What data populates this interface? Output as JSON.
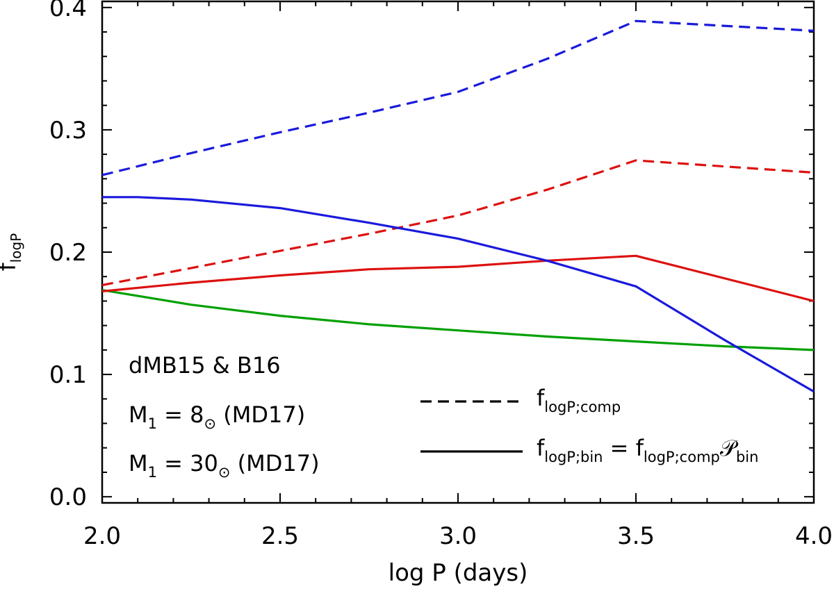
{
  "chart_data": {
    "type": "line",
    "title": "",
    "xlabel": "log P (days)",
    "ylabel": {
      "main": "f",
      "sub": "logP"
    },
    "xlim": [
      2.0,
      4.0
    ],
    "ylim": [
      -0.005,
      0.405
    ],
    "x_ticks": [
      2.0,
      2.5,
      3.0,
      3.5,
      4.0
    ],
    "x_tick_labels": [
      "2.0",
      "2.5",
      "3.0",
      "3.5",
      "4.0"
    ],
    "y_ticks": [
      0.0,
      0.1,
      0.2,
      0.3,
      0.4
    ],
    "y_tick_labels": [
      "0.0",
      "0.1",
      "0.2",
      "0.3",
      "0.4"
    ],
    "x_minor_step": 0.1,
    "y_minor_step": 0.02,
    "grid": false,
    "series": [
      {
        "name": "dMB15 & B16",
        "color": "#00a000",
        "style": "solid",
        "x": [
          2.0,
          2.25,
          2.5,
          2.75,
          3.0,
          3.25,
          3.5,
          3.75,
          4.0
        ],
        "y": [
          0.169,
          0.157,
          0.148,
          0.141,
          0.136,
          0.131,
          0.127,
          0.123,
          0.12
        ]
      },
      {
        "name": "M1 = 8 comp",
        "color": "#dd1111",
        "style": "dashed",
        "x": [
          2.0,
          2.25,
          2.5,
          2.75,
          3.0,
          3.25,
          3.5,
          4.0
        ],
        "y": [
          0.173,
          0.187,
          0.201,
          0.215,
          0.23,
          0.251,
          0.275,
          0.265
        ]
      },
      {
        "name": "M1 = 8 bin",
        "color": "#dd1111",
        "style": "solid",
        "x": [
          2.0,
          2.25,
          2.5,
          2.75,
          3.0,
          3.25,
          3.5,
          4.0
        ],
        "y": [
          0.168,
          0.175,
          0.181,
          0.186,
          0.188,
          0.193,
          0.197,
          0.16
        ]
      },
      {
        "name": "M1 = 30 comp",
        "color": "#1a1adc",
        "style": "dashed",
        "x": [
          2.0,
          2.25,
          2.5,
          2.75,
          3.0,
          3.25,
          3.5,
          4.0
        ],
        "y": [
          0.263,
          0.281,
          0.298,
          0.314,
          0.331,
          0.358,
          0.389,
          0.381
        ]
      },
      {
        "name": "M1 = 30 bin",
        "color": "#1a1adc",
        "style": "solid",
        "x": [
          2.0,
          2.1,
          2.25,
          2.5,
          2.75,
          3.0,
          3.25,
          3.5,
          3.75,
          4.0
        ],
        "y": [
          0.245,
          0.245,
          0.243,
          0.236,
          0.224,
          0.211,
          0.193,
          0.172,
          0.128,
          0.086
        ]
      }
    ],
    "color_legend": [
      {
        "parts": [
          {
            "t": "dMB15 & B16"
          }
        ],
        "color": "#00a000"
      },
      {
        "parts": [
          {
            "t": "M"
          },
          {
            "t": "1",
            "sub": true
          },
          {
            "t": " =   8"
          },
          {
            "t": "⊙",
            "sub": true
          },
          {
            "t": " (MD17)"
          }
        ],
        "color": "#dd1111"
      },
      {
        "parts": [
          {
            "t": "M"
          },
          {
            "t": "1",
            "sub": true
          },
          {
            "t": " = 30"
          },
          {
            "t": "⊙",
            "sub": true
          },
          {
            "t": " (MD17)"
          }
        ],
        "color": "#1a1adc"
      }
    ],
    "line_legend": [
      {
        "style": "dashed",
        "parts": [
          {
            "t": "f"
          },
          {
            "t": "logP;comp",
            "sub": true
          }
        ]
      },
      {
        "style": "solid",
        "parts": [
          {
            "t": "f"
          },
          {
            "t": "logP;bin",
            "sub": true
          },
          {
            "t": " = f"
          },
          {
            "t": "logP;comp",
            "sub": true
          },
          {
            "t": "𝒫"
          },
          {
            "t": "bin",
            "sub": true
          }
        ]
      }
    ]
  }
}
